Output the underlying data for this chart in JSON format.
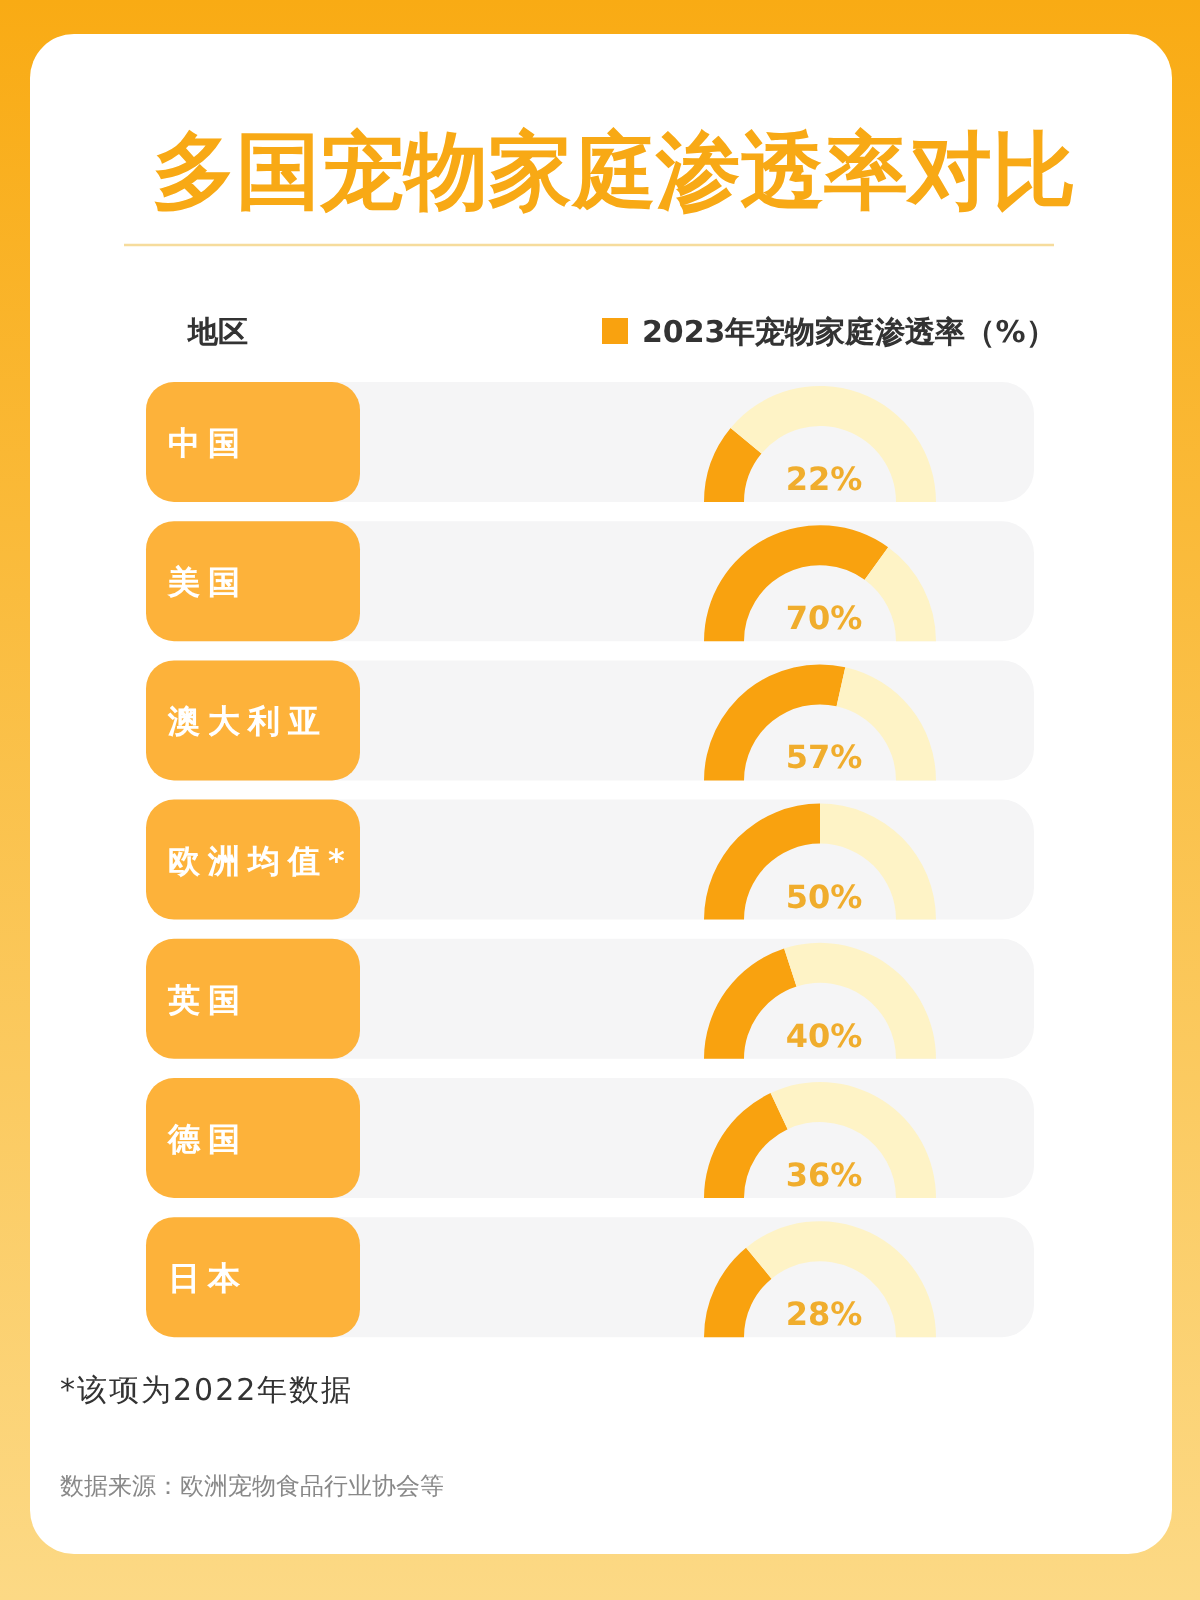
{
  "chart_data": [
    {
      "type": "other",
      "title": "多国宠物家庭渗透率对比",
      "annotations": [
        "地区"
      ]
    },
    {
      "type": "donut",
      "ylabel": "中国",
      "legend": "top right",
      "categories": [
        "2023年宠物家庭渗透率（%）",
        null
      ],
      "values": [
        22,
        78
      ],
      "colors": [
        "#f9a20f",
        "#fef3c6"
      ],
      "annotations": [
        "22%"
      ]
    },
    {
      "type": "donut",
      "ylabel": "美国",
      "categories": [
        null,
        null
      ],
      "values": [
        70,
        30
      ],
      "colors": [
        "#f9a20f",
        "#fef3c6"
      ],
      "annotations": [
        "70%"
      ]
    },
    {
      "type": "donut",
      "ylabel": "澳大利亚",
      "categories": [
        null,
        null
      ],
      "values": [
        57,
        43
      ],
      "colors": [
        "#f9a20f",
        "#fef3c6"
      ],
      "annotations": [
        "57%"
      ]
    },
    {
      "type": "donut",
      "ylabel": "欧洲均值*",
      "categories": [
        null,
        null
      ],
      "values": [
        50,
        50
      ],
      "colors": [
        "#f9a20f",
        "#fef3c6"
      ],
      "annotations": [
        "50%"
      ]
    },
    {
      "type": "donut",
      "ylabel": "英国",
      "categories": [
        null,
        null
      ],
      "values": [
        40,
        60
      ],
      "colors": [
        "#f9a20f",
        "#fef3c6"
      ],
      "annotations": [
        "40%"
      ]
    },
    {
      "type": "donut",
      "ylabel": "德国",
      "categories": [
        null,
        null
      ],
      "values": [
        36,
        64
      ],
      "colors": [
        "#f9a20f",
        "#fef3c6"
      ],
      "annotations": [
        "36%"
      ]
    },
    {
      "type": "donut",
      "ylabel": "日本",
      "categories": [
        null,
        null
      ],
      "values": [
        28,
        72
      ],
      "colors": [
        "#f9a20f",
        "#fef3c6"
      ],
      "annotations": [
        "28%"
      ]
    },
    {
      "type": "other",
      "annotations": [
        "*该项为2022年数据",
        "数据来源：欧洲宠物食品行业协会等"
      ]
    }
  ]
}
